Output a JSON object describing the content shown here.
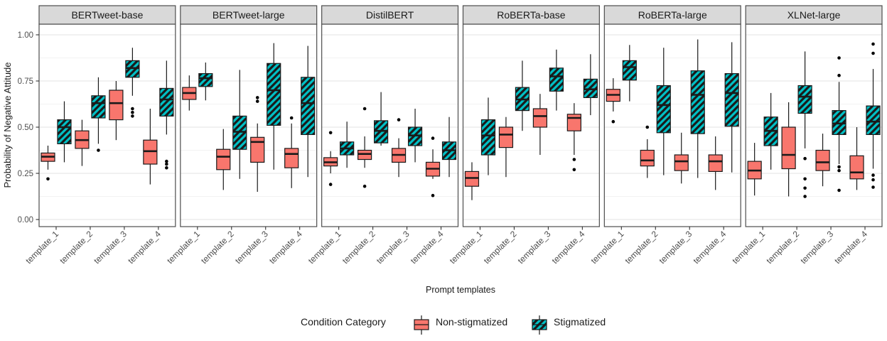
{
  "chart_data": {
    "type": "boxplot",
    "faceted": true,
    "ylabel": "Probability of Negative Attitude",
    "xlabel": "Prompt templates",
    "ylim": [
      0,
      1
    ],
    "grid": "major+minor",
    "categories": [
      "template_1",
      "template_2",
      "template_3",
      "template_4"
    ],
    "y_axis": {
      "ticks": [
        {
          "value": 0.0,
          "label": "0.00"
        },
        {
          "value": 0.25,
          "label": "0.25"
        },
        {
          "value": 0.5,
          "label": "0.50"
        },
        {
          "value": 0.75,
          "label": "0.75"
        },
        {
          "value": 1.0,
          "label": "1.00"
        }
      ]
    },
    "legend": {
      "title": "Condition Category",
      "position": "bottom",
      "entries": [
        {
          "label": "Non-stigmatized",
          "color": "#F8766D",
          "hatch": false
        },
        {
          "label": "Stigmatized",
          "color": "#00BFC4",
          "hatch": true
        }
      ]
    },
    "colors": {
      "strip_bg": "#D9D9D9",
      "border": "#4D4D4D",
      "panel_bg": "#FFFFFF",
      "grid_major": "#E3E3E3",
      "grid_minor": "#F2F2F2",
      "tick_text": "#4D4D4D",
      "text": "#1A1A1A",
      "box_stroke": "#1A1A1A",
      "outlier": "#000000"
    },
    "facets": [
      {
        "label": "BERTweet-base",
        "series": [
          {
            "condition": "Non-stigmatized",
            "boxes": [
              {
                "lo": 0.27,
                "q1": 0.315,
                "med": 0.34,
                "q3": 0.36,
                "hi": 0.4,
                "out": [
                  0.22
                ]
              },
              {
                "lo": 0.29,
                "q1": 0.385,
                "med": 0.43,
                "q3": 0.48,
                "hi": 0.54,
                "out": []
              },
              {
                "lo": 0.43,
                "q1": 0.54,
                "med": 0.63,
                "q3": 0.7,
                "hi": 0.75,
                "out": []
              },
              {
                "lo": 0.19,
                "q1": 0.3,
                "med": 0.37,
                "q3": 0.43,
                "hi": 0.6,
                "out": []
              }
            ]
          },
          {
            "condition": "Stigmatized",
            "boxes": [
              {
                "lo": 0.31,
                "q1": 0.41,
                "med": 0.5,
                "q3": 0.54,
                "hi": 0.64,
                "out": []
              },
              {
                "lo": 0.41,
                "q1": 0.55,
                "med": 0.63,
                "q3": 0.67,
                "hi": 0.77,
                "out": [
                  0.375
                ]
              },
              {
                "lo": 0.67,
                "q1": 0.77,
                "med": 0.82,
                "q3": 0.86,
                "hi": 0.93,
                "out": [
                  0.6,
                  0.58,
                  0.56
                ]
              },
              {
                "lo": 0.46,
                "q1": 0.56,
                "med": 0.65,
                "q3": 0.71,
                "hi": 0.86,
                "out": [
                  0.315,
                  0.3,
                  0.28
                ]
              }
            ]
          }
        ]
      },
      {
        "label": "BERTweet-large",
        "series": [
          {
            "condition": "Non-stigmatized",
            "boxes": [
              {
                "lo": 0.59,
                "q1": 0.65,
                "med": 0.685,
                "q3": 0.715,
                "hi": 0.78,
                "out": []
              },
              {
                "lo": 0.16,
                "q1": 0.27,
                "med": 0.34,
                "q3": 0.38,
                "hi": 0.49,
                "out": []
              },
              {
                "lo": 0.15,
                "q1": 0.31,
                "med": 0.42,
                "q3": 0.445,
                "hi": 0.52,
                "out": [
                  0.66,
                  0.64
                ]
              },
              {
                "lo": 0.17,
                "q1": 0.28,
                "med": 0.355,
                "q3": 0.385,
                "hi": 0.52,
                "out": [
                  0.55
                ]
              }
            ]
          },
          {
            "condition": "Stigmatized",
            "boxes": [
              {
                "lo": 0.645,
                "q1": 0.72,
                "med": 0.765,
                "q3": 0.79,
                "hi": 0.85,
                "out": []
              },
              {
                "lo": 0.22,
                "q1": 0.38,
                "med": 0.475,
                "q3": 0.56,
                "hi": 0.81,
                "out": []
              },
              {
                "lo": 0.27,
                "q1": 0.51,
                "med": 0.7,
                "q3": 0.845,
                "hi": 0.955,
                "out": []
              },
              {
                "lo": 0.23,
                "q1": 0.46,
                "med": 0.63,
                "q3": 0.77,
                "hi": 0.94,
                "out": []
              }
            ]
          }
        ]
      },
      {
        "label": "DistilBERT",
        "series": [
          {
            "condition": "Non-stigmatized",
            "boxes": [
              {
                "lo": 0.25,
                "q1": 0.29,
                "med": 0.31,
                "q3": 0.335,
                "hi": 0.37,
                "out": [
                  0.47,
                  0.19
                ]
              },
              {
                "lo": 0.28,
                "q1": 0.325,
                "med": 0.355,
                "q3": 0.375,
                "hi": 0.45,
                "out": [
                  0.6,
                  0.18
                ]
              },
              {
                "lo": 0.23,
                "q1": 0.31,
                "med": 0.35,
                "q3": 0.385,
                "hi": 0.44,
                "out": [
                  0.54
                ]
              },
              {
                "lo": 0.22,
                "q1": 0.235,
                "med": 0.275,
                "q3": 0.31,
                "hi": 0.38,
                "out": [
                  0.44,
                  0.13
                ]
              }
            ]
          },
          {
            "condition": "Stigmatized",
            "boxes": [
              {
                "lo": 0.28,
                "q1": 0.35,
                "med": 0.385,
                "q3": 0.42,
                "hi": 0.53,
                "out": []
              },
              {
                "lo": 0.4,
                "q1": 0.415,
                "med": 0.48,
                "q3": 0.535,
                "hi": 0.69,
                "out": []
              },
              {
                "lo": 0.31,
                "q1": 0.4,
                "med": 0.455,
                "q3": 0.5,
                "hi": 0.6,
                "out": []
              },
              {
                "lo": 0.23,
                "q1": 0.325,
                "med": 0.375,
                "q3": 0.42,
                "hi": 0.555,
                "out": []
              }
            ]
          }
        ]
      },
      {
        "label": "RoBERTa-base",
        "series": [
          {
            "condition": "Non-stigmatized",
            "boxes": [
              {
                "lo": 0.105,
                "q1": 0.18,
                "med": 0.225,
                "q3": 0.26,
                "hi": 0.31,
                "out": []
              },
              {
                "lo": 0.23,
                "q1": 0.39,
                "med": 0.46,
                "q3": 0.5,
                "hi": 0.555,
                "out": []
              },
              {
                "lo": 0.35,
                "q1": 0.5,
                "med": 0.56,
                "q3": 0.6,
                "hi": 0.68,
                "out": []
              },
              {
                "lo": 0.35,
                "q1": 0.48,
                "med": 0.55,
                "q3": 0.57,
                "hi": 0.63,
                "out": [
                  0.325,
                  0.27
                ]
              }
            ]
          },
          {
            "condition": "Stigmatized",
            "boxes": [
              {
                "lo": 0.24,
                "q1": 0.35,
                "med": 0.455,
                "q3": 0.54,
                "hi": 0.66,
                "out": []
              },
              {
                "lo": 0.48,
                "q1": 0.59,
                "med": 0.65,
                "q3": 0.715,
                "hi": 0.86,
                "out": []
              },
              {
                "lo": 0.59,
                "q1": 0.695,
                "med": 0.775,
                "q3": 0.82,
                "hi": 0.92,
                "out": []
              },
              {
                "lo": 0.565,
                "q1": 0.66,
                "med": 0.705,
                "q3": 0.76,
                "hi": 0.895,
                "out": []
              }
            ]
          }
        ]
      },
      {
        "label": "RoBERTa-large",
        "series": [
          {
            "condition": "Non-stigmatized",
            "boxes": [
              {
                "lo": 0.585,
                "q1": 0.64,
                "med": 0.675,
                "q3": 0.705,
                "hi": 0.765,
                "out": [
                  0.53
                ]
              },
              {
                "lo": 0.225,
                "q1": 0.29,
                "med": 0.32,
                "q3": 0.375,
                "hi": 0.435,
                "out": [
                  0.5
                ]
              },
              {
                "lo": 0.195,
                "q1": 0.265,
                "med": 0.315,
                "q3": 0.35,
                "hi": 0.47,
                "out": []
              },
              {
                "lo": 0.16,
                "q1": 0.26,
                "med": 0.315,
                "q3": 0.35,
                "hi": 0.45,
                "out": []
              }
            ]
          },
          {
            "condition": "Stigmatized",
            "boxes": [
              {
                "lo": 0.64,
                "q1": 0.755,
                "med": 0.825,
                "q3": 0.86,
                "hi": 0.945,
                "out": []
              },
              {
                "lo": 0.24,
                "q1": 0.47,
                "med": 0.62,
                "q3": 0.725,
                "hi": 0.93,
                "out": []
              },
              {
                "lo": 0.225,
                "q1": 0.465,
                "med": 0.675,
                "q3": 0.805,
                "hi": 0.975,
                "out": []
              },
              {
                "lo": 0.255,
                "q1": 0.505,
                "med": 0.685,
                "q3": 0.79,
                "hi": 0.96,
                "out": []
              }
            ]
          }
        ]
      },
      {
        "label": "XLNet-large",
        "series": [
          {
            "condition": "Non-stigmatized",
            "boxes": [
              {
                "lo": 0.13,
                "q1": 0.22,
                "med": 0.265,
                "q3": 0.315,
                "hi": 0.415,
                "out": []
              },
              {
                "lo": 0.125,
                "q1": 0.275,
                "med": 0.35,
                "q3": 0.5,
                "hi": 0.635,
                "out": []
              },
              {
                "lo": 0.18,
                "q1": 0.265,
                "med": 0.31,
                "q3": 0.375,
                "hi": 0.465,
                "out": []
              },
              {
                "lo": 0.16,
                "q1": 0.22,
                "med": 0.255,
                "q3": 0.345,
                "hi": 0.5,
                "out": []
              }
            ]
          },
          {
            "condition": "Stigmatized",
            "boxes": [
              {
                "lo": 0.27,
                "q1": 0.4,
                "med": 0.48,
                "q3": 0.555,
                "hi": 0.685,
                "out": []
              },
              {
                "lo": 0.385,
                "q1": 0.575,
                "med": 0.665,
                "q3": 0.725,
                "hi": 0.91,
                "out": [
                  0.33,
                  0.22,
                  0.17,
                  0.125
                ]
              },
              {
                "lo": 0.3,
                "q1": 0.46,
                "med": 0.52,
                "q3": 0.59,
                "hi": 0.745,
                "out": [
                  0.875,
                  0.78,
                  0.285,
                  0.265,
                  0.158
                ]
              },
              {
                "lo": 0.275,
                "q1": 0.46,
                "med": 0.53,
                "q3": 0.615,
                "hi": 0.815,
                "out": [
                  0.95,
                  0.9,
                  0.24,
                  0.215,
                  0.175
                ]
              }
            ]
          }
        ]
      }
    ]
  }
}
